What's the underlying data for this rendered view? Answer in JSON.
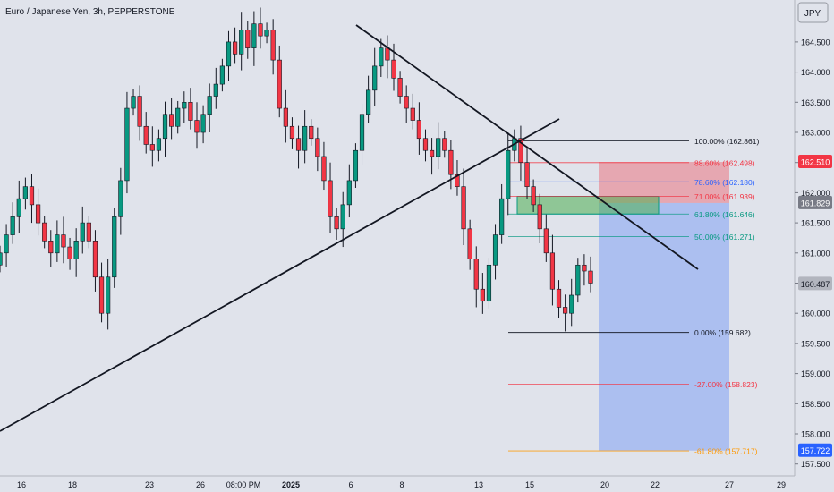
{
  "header": {
    "symbol_title": "Euro / Japanese Yen, 3h, PEPPERSTONE"
  },
  "currency_button": "JPY",
  "chart_data": {
    "type": "candlestick",
    "title": "Euro / Japanese Yen, 3h, PEPPERSTONE",
    "ylim": [
      157.3,
      165.2
    ],
    "y_ticks": [
      "157.500",
      "158.000",
      "158.500",
      "159.000",
      "159.500",
      "160.000",
      "160.500",
      "161.000",
      "161.500",
      "162.000",
      "162.500",
      "163.000",
      "163.500",
      "164.000",
      "164.500"
    ],
    "x_ticks": [
      "16",
      "18",
      "23",
      "26",
      "08:00 PM",
      "2025",
      "6",
      "8",
      "13",
      "15",
      "20",
      "22",
      "27",
      "29"
    ],
    "bold_x_tick": "2025",
    "price_badges": [
      {
        "value": "162.510",
        "bg": "#f23645",
        "fg": "#ffffff"
      },
      {
        "value": "161.829",
        "bg": "#787b86",
        "fg": "#ffffff"
      },
      {
        "value": "160.487",
        "bg": "#b2b5be",
        "fg": "#131722"
      },
      {
        "value": "157.722",
        "bg": "#2962ff",
        "fg": "#ffffff"
      }
    ],
    "fib_levels": [
      {
        "label": "100.00% (162.861)",
        "price": 162.861,
        "color": "#131722"
      },
      {
        "label": "88.60% (162.498)",
        "price": 162.498,
        "color": "#f23645"
      },
      {
        "label": "78.60% (162.180)",
        "price": 162.18,
        "color": "#2962ff"
      },
      {
        "label": "71.00% (161.939)",
        "price": 161.939,
        "color": "#f23645"
      },
      {
        "label": "61.80% (161.646)",
        "price": 161.646,
        "color": "#089981"
      },
      {
        "label": "50.00% (161.271)",
        "price": 161.271,
        "color": "#089981"
      },
      {
        "label": "0.00% (159.682)",
        "price": 159.682,
        "color": "#131722"
      },
      {
        "label": "-27.00% (158.823)",
        "price": 158.823,
        "color": "#f23645"
      },
      {
        "label": "-61.80% (157.717)",
        "price": 157.717,
        "color": "#ff9800"
      }
    ],
    "colors": {
      "up": "#089981",
      "down": "#f23645",
      "wick": "#131722",
      "background": "#e0e3eb"
    },
    "current_price": 160.487,
    "position": {
      "entry": 161.829,
      "stop": 162.51,
      "target": 157.722
    },
    "candles_close": [
      161.0,
      161.3,
      161.6,
      161.9,
      162.1,
      161.8,
      161.5,
      161.2,
      161.0,
      161.3,
      161.1,
      160.9,
      161.2,
      161.5,
      161.2,
      160.6,
      160.0,
      160.6,
      161.6,
      162.2,
      163.4,
      163.6,
      163.1,
      162.8,
      162.7,
      162.9,
      163.3,
      163.1,
      163.4,
      163.5,
      163.2,
      163.0,
      163.3,
      163.6,
      163.8,
      164.1,
      164.5,
      164.3,
      164.7,
      164.4,
      164.8,
      164.6,
      164.7,
      164.2,
      163.4,
      163.1,
      162.9,
      162.7,
      163.1,
      162.9,
      162.6,
      162.2,
      161.6,
      161.4,
      161.8,
      162.2,
      162.7,
      163.3,
      163.7,
      164.1,
      164.4,
      164.2,
      163.9,
      163.6,
      163.4,
      163.2,
      162.9,
      162.7,
      162.6,
      162.9,
      162.7,
      162.3,
      162.1,
      161.4,
      160.9,
      160.4,
      160.2,
      160.8,
      161.3,
      161.9,
      162.7,
      162.9,
      162.5,
      162.1,
      161.8,
      161.4,
      161.0,
      160.4,
      160.1,
      160.0,
      160.3,
      160.8,
      160.7,
      160.5
    ]
  }
}
